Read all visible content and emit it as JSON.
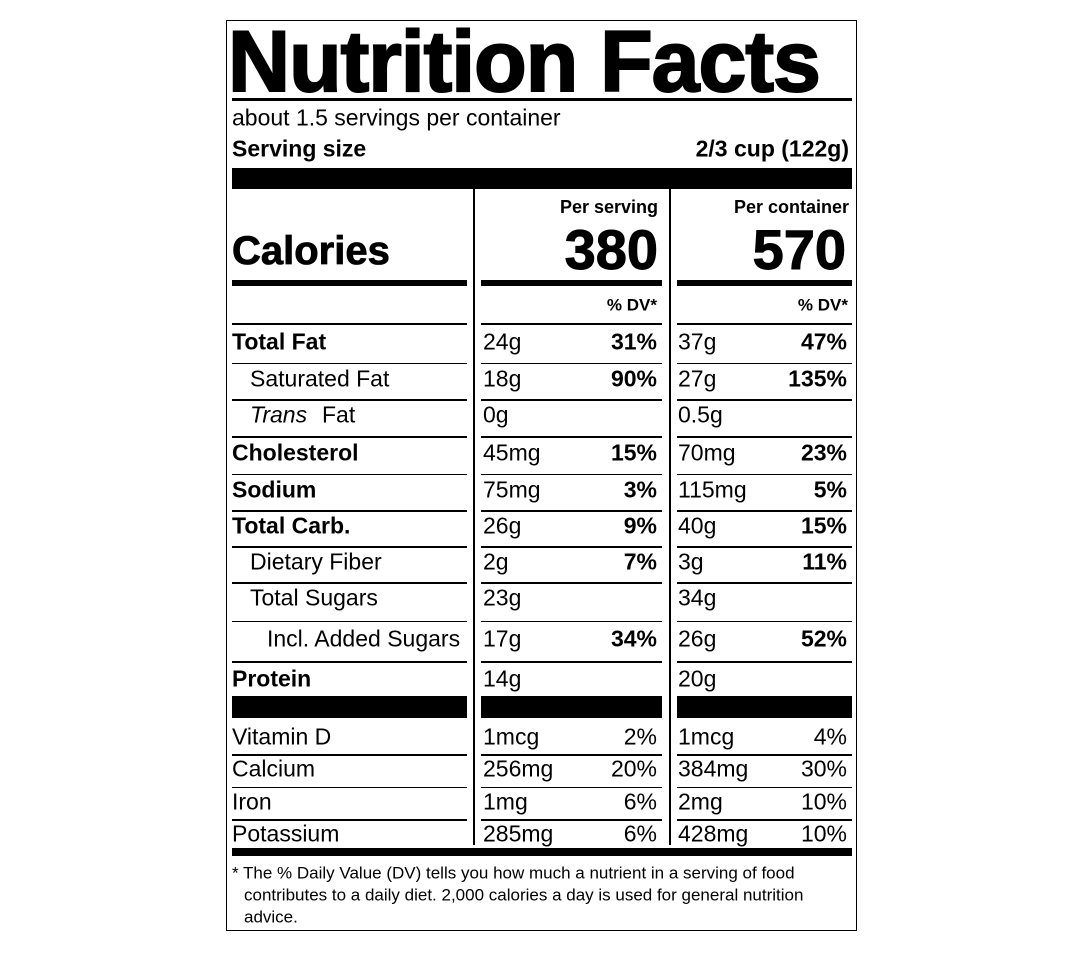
{
  "title": "Nutrition Facts",
  "servings": "about 1.5 servings per container",
  "serving_size": {
    "label": "Serving size",
    "value": "2/3 cup (122g)"
  },
  "calories": {
    "label": "Calories",
    "per_serving": {
      "heading": "Per serving",
      "value": "380"
    },
    "per_container": {
      "heading": "Per container",
      "value": "570"
    }
  },
  "dv_header": {
    "per_serving": "% DV*",
    "per_container": "% DV*"
  },
  "nutrients": [
    {
      "name": "Total Fat",
      "per_serving": {
        "amount": "24g",
        "dv": "31%"
      },
      "per_container": {
        "amount": "37g",
        "dv": "47%"
      }
    },
    {
      "name": "Saturated Fat",
      "per_serving": {
        "amount": "18g",
        "dv": "90%"
      },
      "per_container": {
        "amount": "27g",
        "dv": "135%"
      }
    },
    {
      "prefix": "Trans",
      "name": "Fat",
      "per_serving": {
        "amount": "0g"
      },
      "per_container": {
        "amount": "0.5g"
      }
    },
    {
      "name": "Cholesterol",
      "per_serving": {
        "amount": "45mg",
        "dv": "15%"
      },
      "per_container": {
        "amount": "70mg",
        "dv": "23%"
      }
    },
    {
      "name": "Sodium",
      "per_serving": {
        "amount": "75mg",
        "dv": "3%"
      },
      "per_container": {
        "amount": "115mg",
        "dv": "5%"
      }
    },
    {
      "name": "Total Carb.",
      "per_serving": {
        "amount": "26g",
        "dv": "9%"
      },
      "per_container": {
        "amount": "40g",
        "dv": "15%"
      }
    },
    {
      "name": "Dietary Fiber",
      "per_serving": {
        "amount": "2g",
        "dv": "7%"
      },
      "per_container": {
        "amount": "3g",
        "dv": "11%"
      }
    },
    {
      "name": "Total Sugars",
      "per_serving": {
        "amount": "23g"
      },
      "per_container": {
        "amount": "34g"
      }
    },
    {
      "name": "Incl. Added Sugars",
      "per_serving": {
        "amount": "17g",
        "dv": "34%"
      },
      "per_container": {
        "amount": "26g",
        "dv": "52%"
      }
    },
    {
      "name": "Protein",
      "per_serving": {
        "amount": "14g"
      },
      "per_container": {
        "amount": "20g"
      }
    }
  ],
  "vitamins": [
    {
      "name": "Vitamin D",
      "per_serving": {
        "amount": "1mcg",
        "dv": "2%"
      },
      "per_container": {
        "amount": "1mcg",
        "dv": "4%"
      }
    },
    {
      "name": "Calcium",
      "per_serving": {
        "amount": "256mg",
        "dv": "20%"
      },
      "per_container": {
        "amount": "384mg",
        "dv": "30%"
      }
    },
    {
      "name": "Iron",
      "per_serving": {
        "amount": "1mg",
        "dv": "6%"
      },
      "per_container": {
        "amount": "2mg",
        "dv": "10%"
      }
    },
    {
      "name": "Potassium",
      "per_serving": {
        "amount": "285mg",
        "dv": "6%"
      },
      "per_container": {
        "amount": "428mg",
        "dv": "10%"
      }
    }
  ],
  "footnote": [
    "* The % Daily Value (DV) tells you how much a nutrient in a serving of food",
    "contributes to a daily diet. 2,000 calories a day is used for general nutrition",
    "advice."
  ]
}
